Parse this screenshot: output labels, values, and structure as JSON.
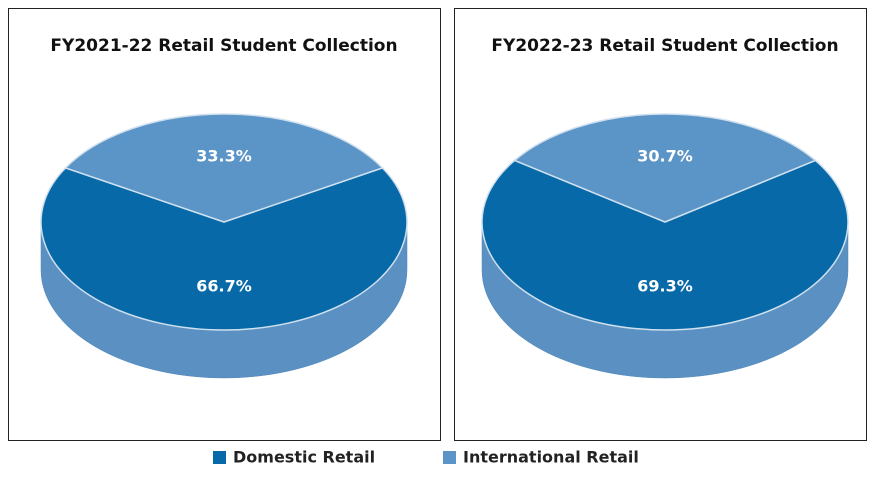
{
  "legend": [
    {
      "name": "Domestic Retail",
      "color": "#0769a8"
    },
    {
      "name": "International Retail",
      "color": "#5b95c7"
    }
  ],
  "chart_data": [
    {
      "type": "pie",
      "title": "FY2021-22 Retail Student Collection",
      "values": [
        66.7,
        33.3
      ],
      "value_labels": [
        "66.7%",
        "33.3%"
      ]
    },
    {
      "type": "pie",
      "title": "FY2022-23 Retail Student Collection",
      "values": [
        69.3,
        30.7
      ],
      "value_labels": [
        "69.3%",
        "30.7%"
      ]
    }
  ]
}
